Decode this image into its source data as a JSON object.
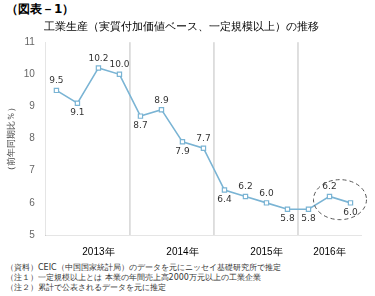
{
  "chart_data": {
    "type": "line",
    "title": "工業生産（実質付加価値ベース、一定規模以上）の推移",
    "ylabel": "（前年同期比％）",
    "annotations": [
      "（図表－1）",
      "（資料）CEIC（中国国家統計局）のデータを元にニッセイ基礎研究所で推定",
      "（注１）一定規模以上とは 本業の年間売上高2000万元以上の工業企業",
      "（注２）累計で公表されるデータを元に推定"
    ],
    "categories": [
      null,
      null,
      "2013年",
      null,
      null,
      null,
      "2014年",
      null,
      null,
      null,
      "2015年",
      null,
      null,
      "2016年",
      null
    ],
    "values": [
      9.5,
      9.1,
      10.2,
      10.0,
      8.7,
      8.9,
      7.9,
      7.7,
      6.4,
      6.2,
      6.0,
      5.8,
      5.8,
      6.2,
      6.0
    ],
    "value_labels": [
      "9.5",
      "9.1",
      "10.2",
      "10.0",
      "8.7",
      "8.9",
      "7.9",
      "7.7",
      "6.4",
      "6.2",
      "6.0",
      "5.8",
      "5.8",
      "6.2",
      "6.0"
    ],
    "color": "#7ab4d4",
    "marker": "square",
    "line_style": "solid",
    "ylim": [
      5,
      11
    ],
    "yticks": [
      5,
      6,
      7,
      8,
      9,
      10,
      11
    ],
    "grid": false,
    "data_labels": true
  }
}
